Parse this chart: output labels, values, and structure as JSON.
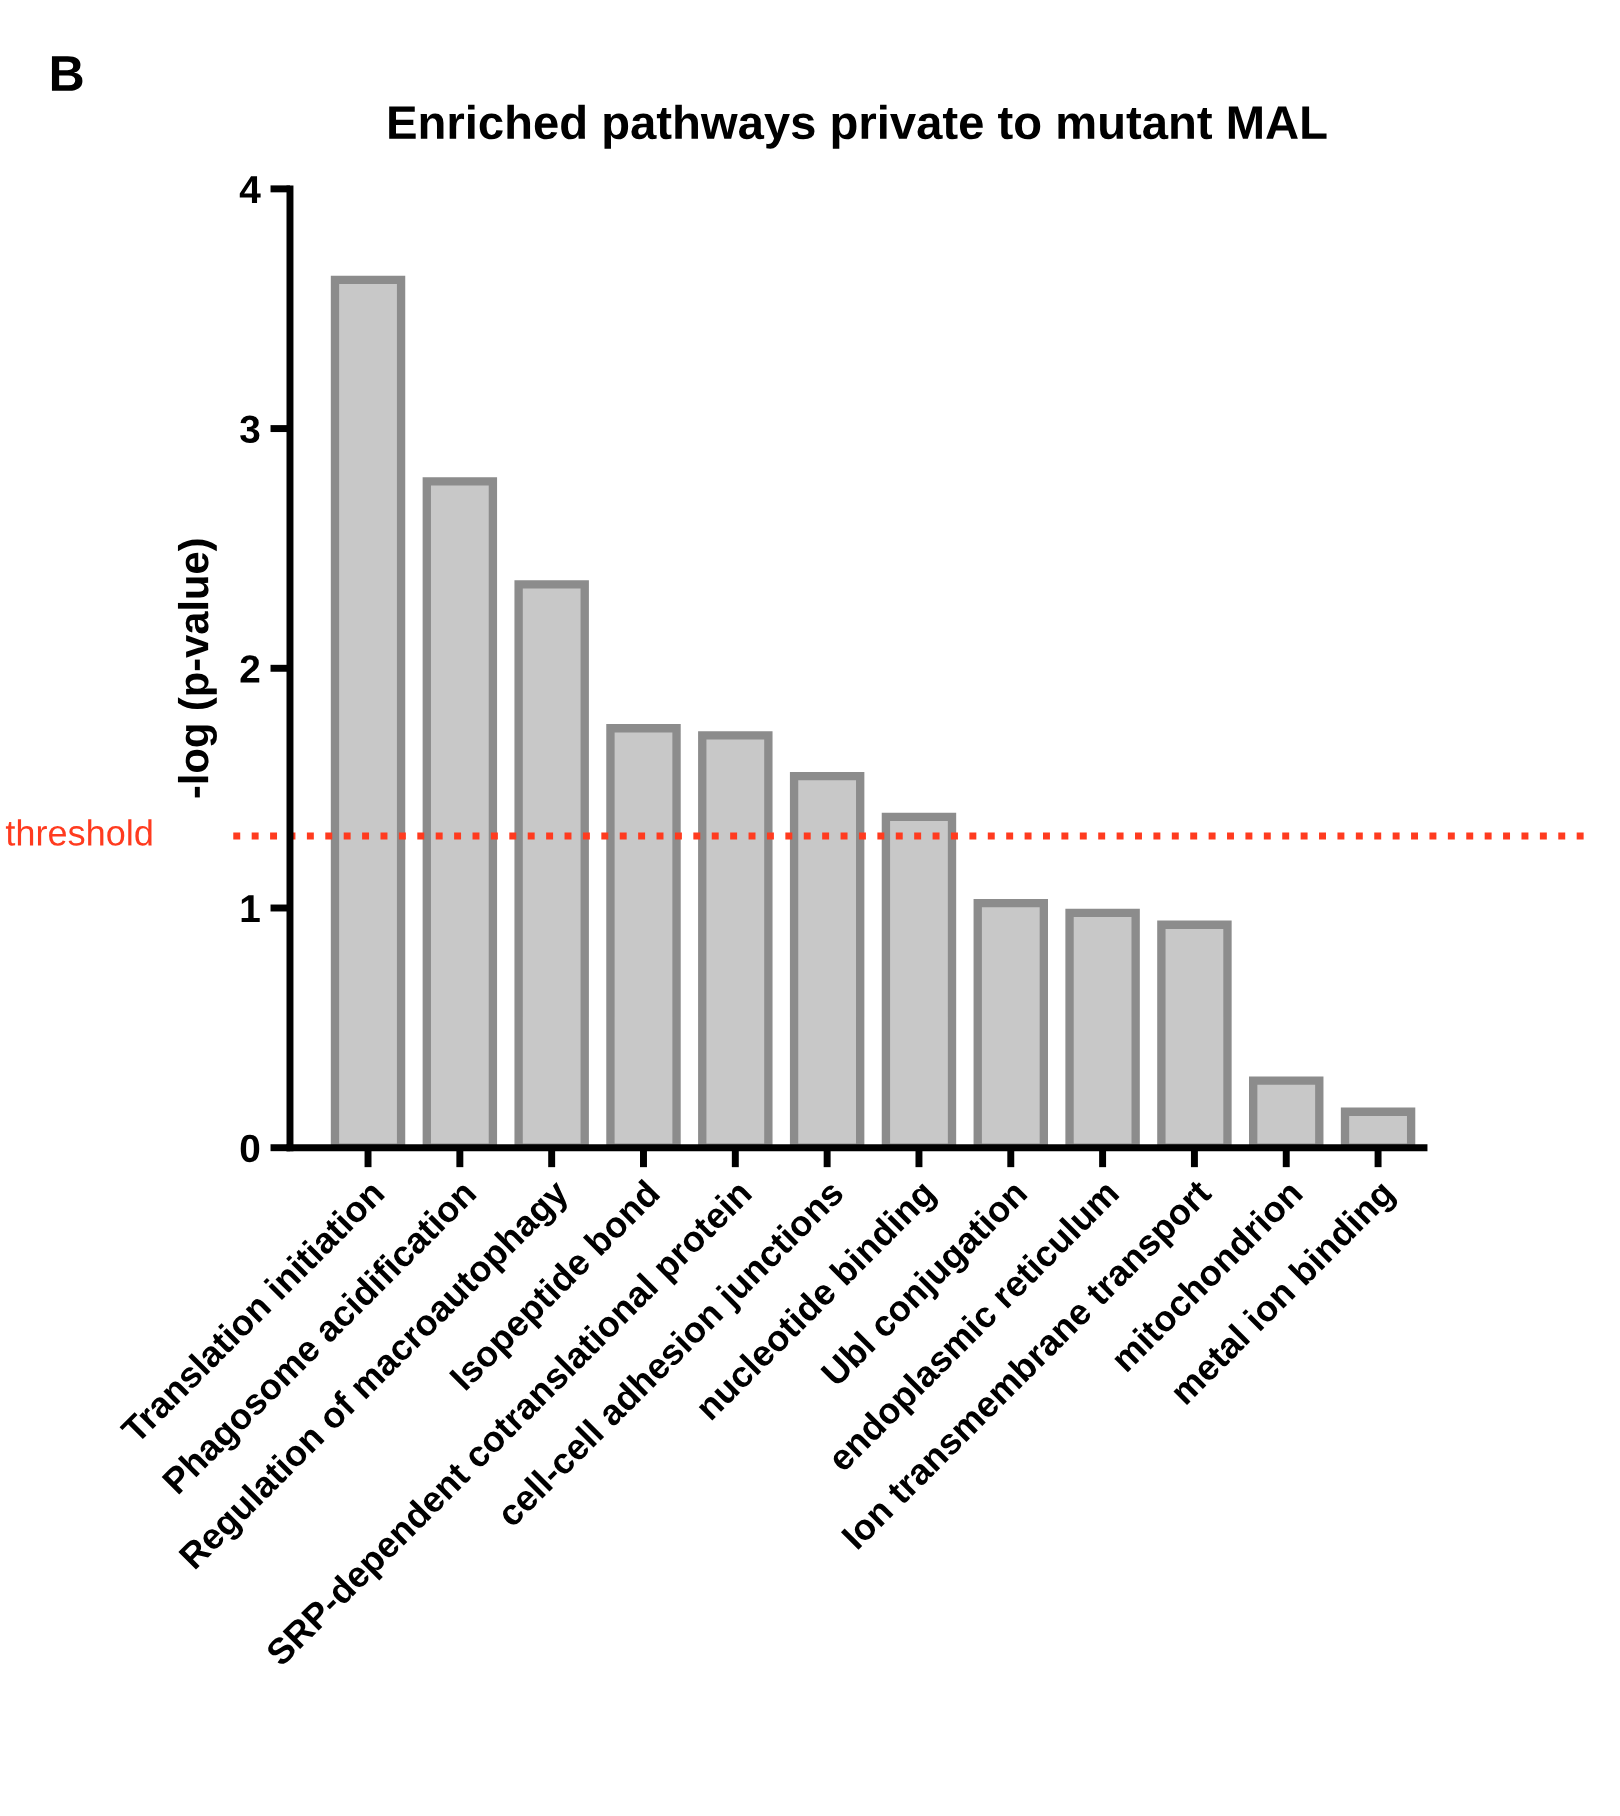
{
  "chart_data": {
    "type": "bar",
    "title": "Enriched pathways private to mutant MAL",
    "ylabel": "-log (p-value)",
    "categories": [
      "Translation initiation",
      "Phagosome acidification",
      "Regulation of macroautophagy",
      "Isopeptide bond",
      "SRP-dependent cotranslational protein",
      "cell-cell adhesion junctions",
      "nucleotide binding",
      "Ubl conjugation",
      "endoplasmic reticulum",
      "Ion transmembrane transport",
      "mitochondrion",
      "metal ion binding"
    ],
    "values": [
      3.62,
      2.78,
      2.35,
      1.75,
      1.72,
      1.55,
      1.38,
      1.02,
      0.98,
      0.93,
      0.28,
      0.15
    ],
    "color": "#c8c8c8",
    "ylim": [
      0,
      4
    ],
    "yticks": [
      0,
      1,
      2,
      3,
      4
    ],
    "grid": false,
    "ref_lines": [
      {
        "axis": "y",
        "value": 1.3,
        "label": "threshold",
        "color": "#ff3b1f",
        "line_style": "dotted"
      }
    ],
    "annotations": [
      "B"
    ]
  }
}
